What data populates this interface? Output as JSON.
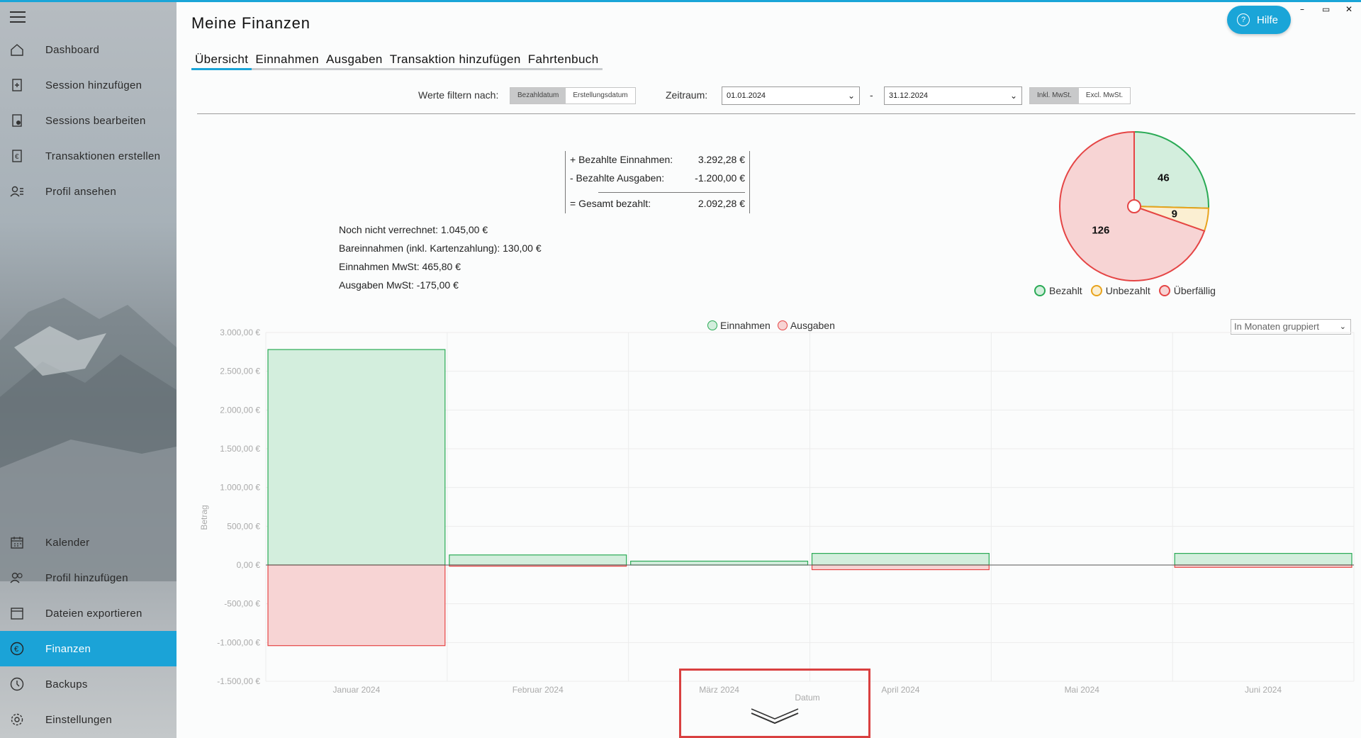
{
  "colors": {
    "accent": "#1aa5d8",
    "paid": "#2aaa55",
    "unpaid": "#e8a31c",
    "overdue": "#e54545",
    "income_fill": "#d3eedd",
    "expense_fill": "#f7d4d4"
  },
  "sidebar": {
    "items": [
      {
        "label": "Dashboard",
        "icon": "home-icon"
      },
      {
        "label": "Session hinzufügen",
        "icon": "document-add-icon"
      },
      {
        "label": "Sessions bearbeiten",
        "icon": "document-edit-icon"
      },
      {
        "label": "Transaktionen erstellen",
        "icon": "euro-document-icon"
      },
      {
        "label": "Profil ansehen",
        "icon": "user-list-icon"
      },
      {
        "label": "Kalender",
        "icon": "calendar-icon"
      },
      {
        "label": "Profil hinzufügen",
        "icon": "user-add-icon"
      },
      {
        "label": "Dateien exportieren",
        "icon": "export-icon"
      },
      {
        "label": "Finanzen",
        "icon": "euro-circle-icon"
      },
      {
        "label": "Backups",
        "icon": "history-icon"
      },
      {
        "label": "Einstellungen",
        "icon": "gear-icon"
      }
    ],
    "active": "Finanzen"
  },
  "header": {
    "title": "Meine Finanzen",
    "help_label": "Hilfe",
    "help_icon": "?",
    "minimize": "–",
    "restore": "▭",
    "close": "✕"
  },
  "tabs": [
    {
      "label": "Übersicht",
      "active": true
    },
    {
      "label": "Einnahmen"
    },
    {
      "label": "Ausgaben"
    },
    {
      "label": "Transaktion hinzufügen"
    },
    {
      "label": "Fahrtenbuch"
    }
  ],
  "filters": {
    "filter_label": "Werte filtern nach:",
    "filter_options": [
      "Bezahldatum",
      "Erstellungsdatum"
    ],
    "filter_selected": "Bezahldatum",
    "range_label": "Zeitraum:",
    "from": "01.01.2024",
    "separator": "-",
    "to": "31.12.2024",
    "tax_options": [
      "Inkl. MwSt.",
      "Excl. MwSt."
    ],
    "tax_selected": "Inkl. MwSt."
  },
  "summary": {
    "income_label": "+ Bezahlte Einnahmen:",
    "income_value": "3.292,28 €",
    "expense_label": "- Bezahlte Ausgaben:",
    "expense_value": "-1.200,00 €",
    "total_label": "= Gesamt bezahlt:",
    "total_value": "2.092,28 €"
  },
  "stats": [
    "Noch nicht verrechnet: 1.045,00 €",
    "Bareinnahmen (inkl. Kartenzahlung): 130,00 €",
    "Einnahmen MwSt: 465,80 €",
    "Ausgaben MwSt: -175,00 €"
  ],
  "group_select": "In Monaten gruppiert",
  "chart_data": [
    {
      "type": "pie",
      "categories": [
        "Bezahlt",
        "Unbezahlt",
        "Überfällig"
      ],
      "values": [
        46,
        9,
        126
      ],
      "legend": "bottom"
    },
    {
      "type": "bar",
      "categories": [
        "Januar 2024",
        "Februar 2024",
        "März 2024",
        "April 2024",
        "Mai 2024",
        "Juni 2024"
      ],
      "series": [
        {
          "name": "Einnahmen",
          "values": [
            2780,
            130,
            50,
            150,
            0,
            150
          ]
        },
        {
          "name": "Ausgaben",
          "values": [
            -1040,
            -15,
            0,
            -60,
            0,
            -30
          ]
        }
      ],
      "xlabel": "Datum",
      "ylabel": "Betrag",
      "ylim": [
        -1500,
        3000
      ],
      "yticks": [
        "3.000,00 €",
        "2.500,00 €",
        "2.000,00 €",
        "1.500,00 €",
        "1.000,00 €",
        "500,00 €",
        "0,00 €",
        "-500,00 €",
        "-1.000,00 €",
        "-1.500,00 €"
      ],
      "legend": "top-center",
      "grid": true
    }
  ]
}
